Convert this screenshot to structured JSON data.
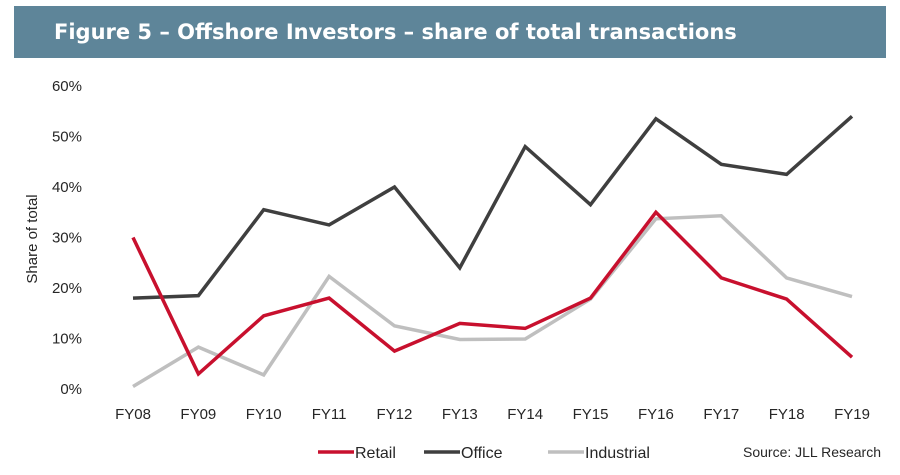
{
  "chart_data": {
    "type": "line",
    "title": "Figure 5 – Offshore Investors – share of total transactions",
    "ylabel": "Share of total",
    "xlabel": "",
    "ylim": [
      0,
      60
    ],
    "yticks": [
      "0%",
      "10%",
      "20%",
      "30%",
      "40%",
      "50%",
      "60%"
    ],
    "grid": false,
    "legend_position": "bottom",
    "categories": [
      "FY08",
      "FY09",
      "FY10",
      "FY11",
      "FY12",
      "FY13",
      "FY14",
      "FY15",
      "FY16",
      "FY17",
      "FY18",
      "FY19"
    ],
    "series": [
      {
        "name": "Retail",
        "color": "#c8102e",
        "values": [
          30,
          3,
          14.5,
          18,
          7.5,
          13,
          12,
          18,
          35,
          22,
          17.8,
          6.3
        ]
      },
      {
        "name": "Office",
        "color": "#3f3f3f",
        "values": [
          18,
          18.5,
          35.5,
          32.5,
          40,
          24,
          48,
          36.5,
          53.5,
          44.5,
          42.5,
          54
        ]
      },
      {
        "name": "Industrial",
        "color": "#bfbfbf",
        "values": [
          0.5,
          8.3,
          2.8,
          22.3,
          12.5,
          9.8,
          9.9,
          17.8,
          33.7,
          34.3,
          22,
          18.3
        ]
      }
    ],
    "source": "Source: JLL Research"
  }
}
